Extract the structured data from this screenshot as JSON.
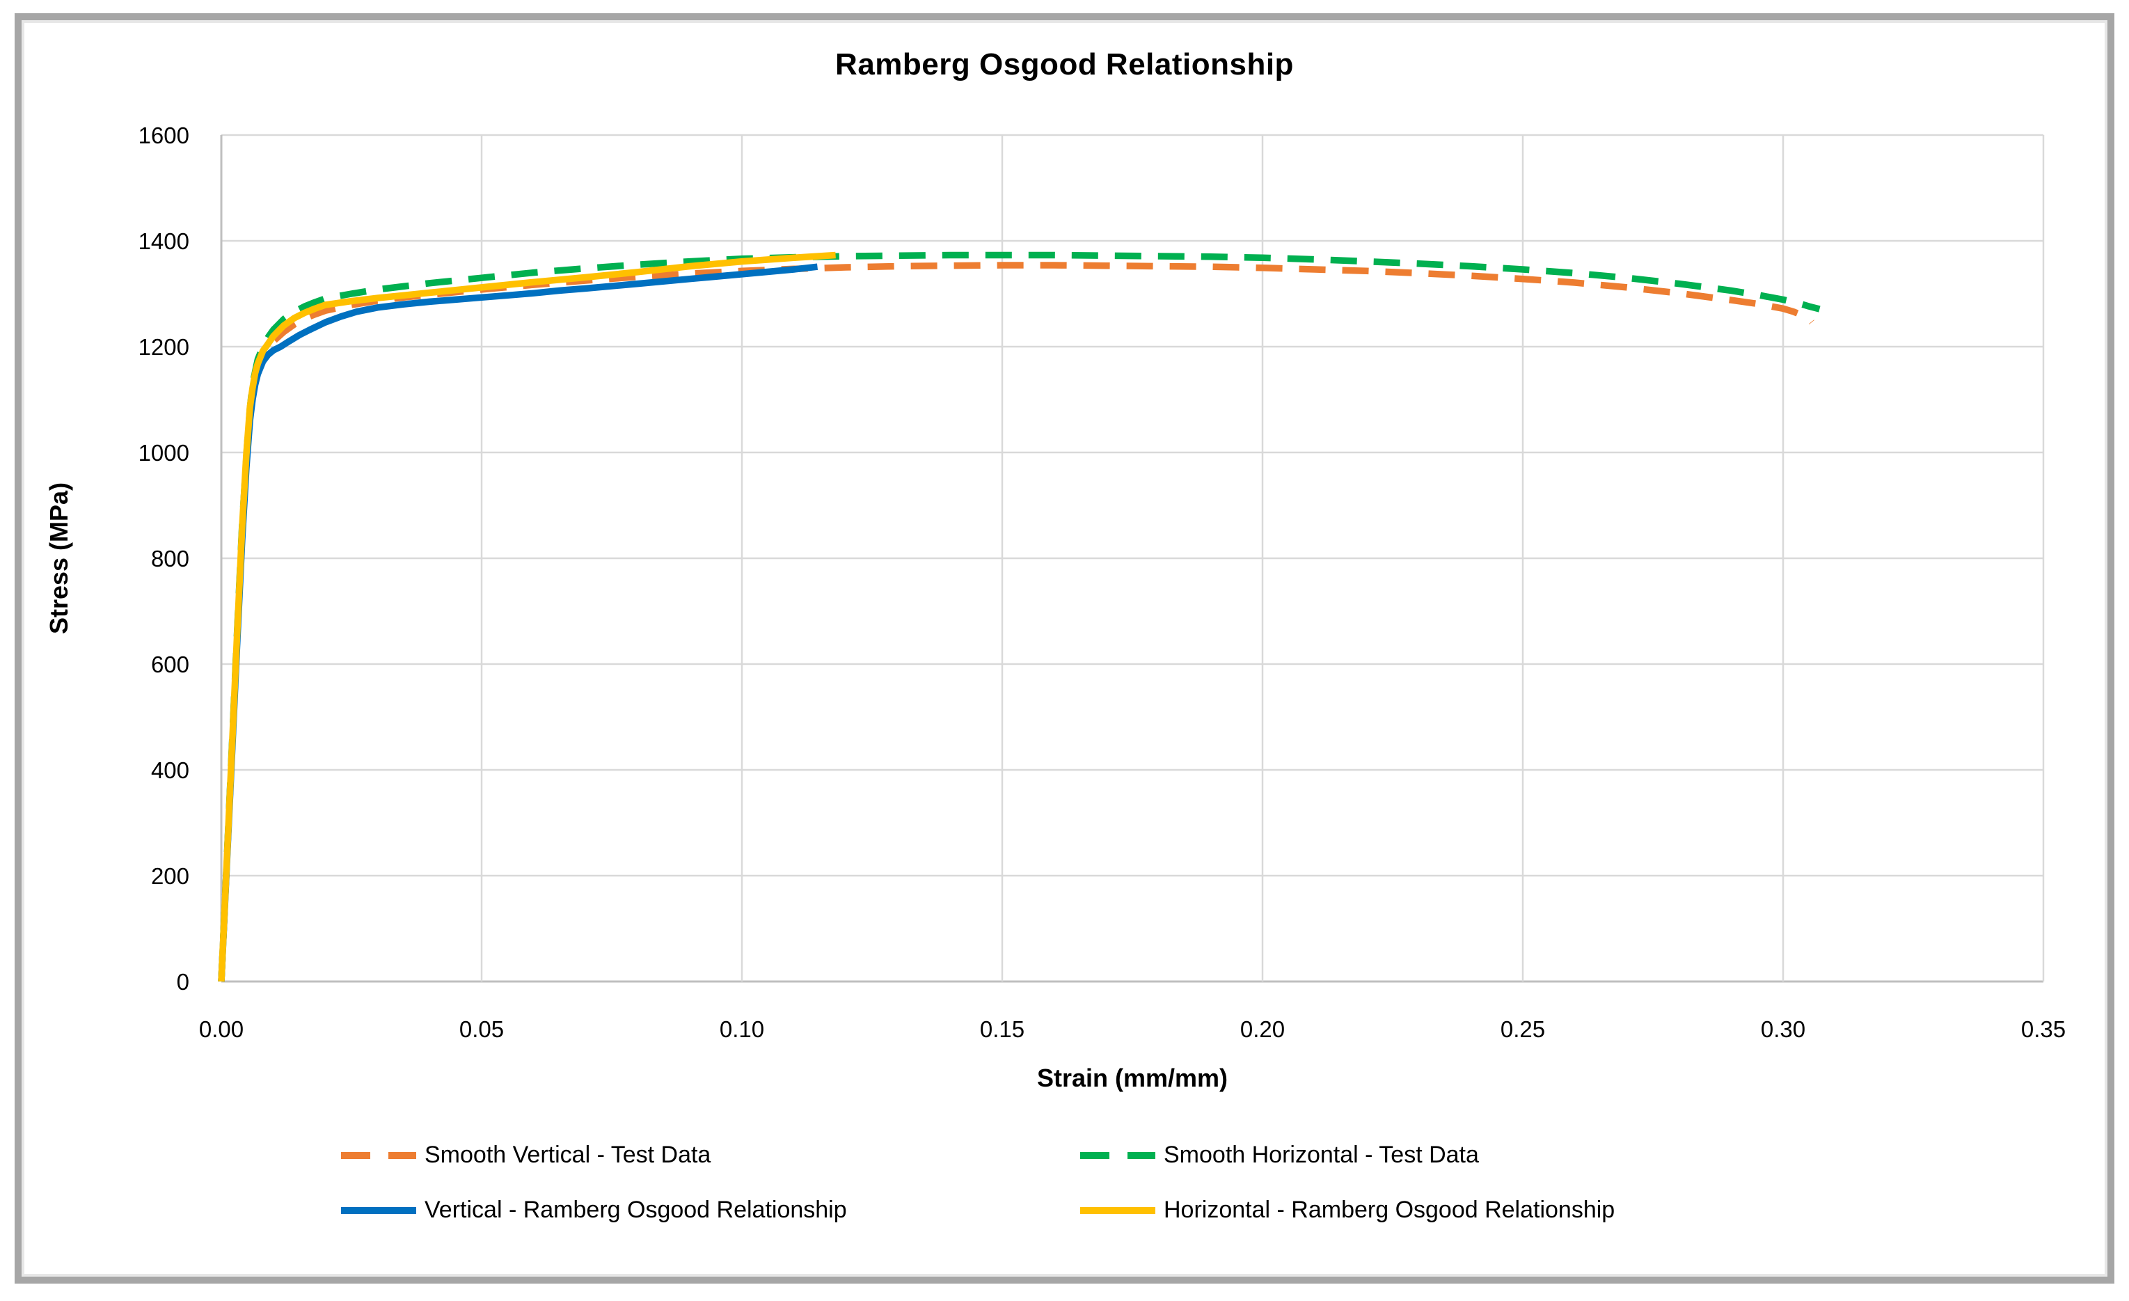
{
  "frame": {
    "border_color": "#a6a6a6",
    "background": "#ffffff"
  },
  "chart_data": {
    "type": "line",
    "title": "Ramberg Osgood Relationship",
    "xlabel": "Strain (mm/mm)",
    "ylabel": "Stress (MPa)",
    "xlim": [
      0,
      0.35
    ],
    "ylim": [
      0,
      1600
    ],
    "grid": true,
    "gridline_color": "#d9d9d9",
    "axis_line_color": "#bfbfbf",
    "legend_position": "bottom",
    "x_ticks": [
      {
        "label": "0.00",
        "value": 0.0
      },
      {
        "label": "0.05",
        "value": 0.05
      },
      {
        "label": "0.10",
        "value": 0.1
      },
      {
        "label": "0.15",
        "value": 0.15
      },
      {
        "label": "0.20",
        "value": 0.2
      },
      {
        "label": "0.25",
        "value": 0.25
      },
      {
        "label": "0.30",
        "value": 0.3
      },
      {
        "label": "0.35",
        "value": 0.35
      }
    ],
    "y_ticks": [
      {
        "label": "0",
        "value": 0
      },
      {
        "label": "200",
        "value": 200
      },
      {
        "label": "400",
        "value": 400
      },
      {
        "label": "600",
        "value": 600
      },
      {
        "label": "800",
        "value": 800
      },
      {
        "label": "1000",
        "value": 1000
      },
      {
        "label": "1200",
        "value": 1200
      },
      {
        "label": "1400",
        "value": 1400
      },
      {
        "label": "1600",
        "value": 1600
      }
    ],
    "series": [
      {
        "id": "smooth-vertical-test-data",
        "name": "Smooth Vertical - Test Data",
        "color": "#ED7D31",
        "style": "dashed",
        "points": [
          [
            0,
            0
          ],
          [
            0.001,
            215
          ],
          [
            0.002,
            430
          ],
          [
            0.003,
            645
          ],
          [
            0.004,
            855
          ],
          [
            0.005,
            1010
          ],
          [
            0.0055,
            1070
          ],
          [
            0.006,
            1115
          ],
          [
            0.007,
            1158
          ],
          [
            0.008,
            1180
          ],
          [
            0.009,
            1196
          ],
          [
            0.01,
            1210
          ],
          [
            0.012,
            1228
          ],
          [
            0.014,
            1242
          ],
          [
            0.016,
            1253
          ],
          [
            0.018,
            1261
          ],
          [
            0.02,
            1268
          ],
          [
            0.025,
            1279
          ],
          [
            0.03,
            1287
          ],
          [
            0.035,
            1293
          ],
          [
            0.04,
            1298
          ],
          [
            0.045,
            1303
          ],
          [
            0.05,
            1308
          ],
          [
            0.06,
            1317
          ],
          [
            0.07,
            1325
          ],
          [
            0.08,
            1332
          ],
          [
            0.09,
            1338
          ],
          [
            0.1,
            1343
          ],
          [
            0.11,
            1347
          ],
          [
            0.12,
            1350
          ],
          [
            0.13,
            1352
          ],
          [
            0.14,
            1353
          ],
          [
            0.15,
            1354
          ],
          [
            0.16,
            1354
          ],
          [
            0.17,
            1353
          ],
          [
            0.18,
            1352
          ],
          [
            0.19,
            1351
          ],
          [
            0.2,
            1349
          ],
          [
            0.21,
            1346
          ],
          [
            0.22,
            1343
          ],
          [
            0.23,
            1339
          ],
          [
            0.24,
            1334
          ],
          [
            0.25,
            1328
          ],
          [
            0.26,
            1321
          ],
          [
            0.27,
            1312
          ],
          [
            0.28,
            1301
          ],
          [
            0.29,
            1288
          ],
          [
            0.295,
            1281
          ],
          [
            0.3,
            1272
          ],
          [
            0.302,
            1266
          ],
          [
            0.304,
            1258
          ],
          [
            0.305,
            1252
          ],
          [
            0.3055,
            1246
          ]
        ]
      },
      {
        "id": "smooth-horizontal-test-data",
        "name": "Smooth Horizontal - Test Data",
        "color": "#00B050",
        "style": "dashed",
        "points": [
          [
            0,
            0
          ],
          [
            0.001,
            218
          ],
          [
            0.002,
            436
          ],
          [
            0.003,
            652
          ],
          [
            0.004,
            862
          ],
          [
            0.005,
            1020
          ],
          [
            0.0055,
            1082
          ],
          [
            0.006,
            1130
          ],
          [
            0.007,
            1176
          ],
          [
            0.008,
            1200
          ],
          [
            0.009,
            1218
          ],
          [
            0.01,
            1232
          ],
          [
            0.012,
            1252
          ],
          [
            0.014,
            1266
          ],
          [
            0.016,
            1276
          ],
          [
            0.018,
            1284
          ],
          [
            0.02,
            1291
          ],
          [
            0.025,
            1300
          ],
          [
            0.03,
            1308
          ],
          [
            0.035,
            1314
          ],
          [
            0.04,
            1320
          ],
          [
            0.045,
            1325
          ],
          [
            0.05,
            1330
          ],
          [
            0.06,
            1340
          ],
          [
            0.07,
            1348
          ],
          [
            0.08,
            1355
          ],
          [
            0.09,
            1361
          ],
          [
            0.1,
            1366
          ],
          [
            0.11,
            1369
          ],
          [
            0.12,
            1371
          ],
          [
            0.13,
            1372
          ],
          [
            0.14,
            1373
          ],
          [
            0.15,
            1373
          ],
          [
            0.16,
            1373
          ],
          [
            0.17,
            1372
          ],
          [
            0.18,
            1371
          ],
          [
            0.19,
            1370
          ],
          [
            0.2,
            1368
          ],
          [
            0.21,
            1365
          ],
          [
            0.22,
            1361
          ],
          [
            0.23,
            1357
          ],
          [
            0.24,
            1352
          ],
          [
            0.25,
            1346
          ],
          [
            0.26,
            1339
          ],
          [
            0.27,
            1330
          ],
          [
            0.28,
            1319
          ],
          [
            0.29,
            1306
          ],
          [
            0.295,
            1298
          ],
          [
            0.3,
            1289
          ],
          [
            0.303,
            1282
          ],
          [
            0.305,
            1276
          ],
          [
            0.307,
            1271
          ]
        ]
      },
      {
        "id": "vertical-ramberg-osgood",
        "name": "Vertical - Ramberg Osgood Relationship",
        "color": "#0070C0",
        "style": "solid",
        "points": [
          [
            0,
            0
          ],
          [
            0.001,
            210
          ],
          [
            0.002,
            420
          ],
          [
            0.003,
            630
          ],
          [
            0.004,
            835
          ],
          [
            0.0048,
            970
          ],
          [
            0.0055,
            1060
          ],
          [
            0.006,
            1100
          ],
          [
            0.0065,
            1128
          ],
          [
            0.007,
            1148
          ],
          [
            0.008,
            1172
          ],
          [
            0.009,
            1185
          ],
          [
            0.01,
            1193
          ],
          [
            0.0114,
            1200
          ],
          [
            0.013,
            1210
          ],
          [
            0.015,
            1222
          ],
          [
            0.017,
            1232
          ],
          [
            0.02,
            1246
          ],
          [
            0.023,
            1257
          ],
          [
            0.026,
            1266
          ],
          [
            0.03,
            1274
          ],
          [
            0.035,
            1280
          ],
          [
            0.04,
            1285
          ],
          [
            0.045,
            1289
          ],
          [
            0.05,
            1293
          ],
          [
            0.055,
            1297
          ],
          [
            0.06,
            1301
          ],
          [
            0.065,
            1306
          ],
          [
            0.07,
            1310
          ],
          [
            0.08,
            1319
          ],
          [
            0.09,
            1328
          ],
          [
            0.1,
            1337
          ],
          [
            0.11,
            1346
          ],
          [
            0.1145,
            1351
          ]
        ]
      },
      {
        "id": "horizontal-ramberg-osgood",
        "name": "Horizontal - Ramberg Osgood Relationship",
        "color": "#FFC000",
        "style": "solid",
        "points": [
          [
            0,
            0
          ],
          [
            0.001,
            216
          ],
          [
            0.002,
            432
          ],
          [
            0.003,
            648
          ],
          [
            0.004,
            858
          ],
          [
            0.0048,
            995
          ],
          [
            0.0055,
            1085
          ],
          [
            0.006,
            1122
          ],
          [
            0.0065,
            1150
          ],
          [
            0.007,
            1168
          ],
          [
            0.008,
            1192
          ],
          [
            0.0086,
            1200
          ],
          [
            0.01,
            1220
          ],
          [
            0.012,
            1240
          ],
          [
            0.014,
            1254
          ],
          [
            0.016,
            1264
          ],
          [
            0.018,
            1272
          ],
          [
            0.02,
            1279
          ],
          [
            0.025,
            1286
          ],
          [
            0.03,
            1292
          ],
          [
            0.035,
            1297
          ],
          [
            0.04,
            1302
          ],
          [
            0.045,
            1307
          ],
          [
            0.05,
            1312
          ],
          [
            0.06,
            1322
          ],
          [
            0.07,
            1331
          ],
          [
            0.08,
            1341
          ],
          [
            0.09,
            1352
          ],
          [
            0.1,
            1361
          ],
          [
            0.11,
            1368
          ],
          [
            0.118,
            1373
          ]
        ]
      }
    ]
  }
}
